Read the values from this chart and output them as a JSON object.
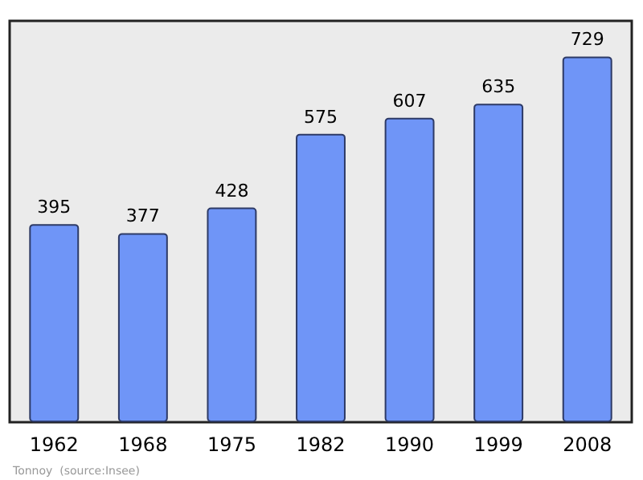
{
  "chart_data": {
    "type": "bar",
    "categories": [
      "1962",
      "1968",
      "1975",
      "1982",
      "1990",
      "1999",
      "2008"
    ],
    "values": [
      395,
      377,
      428,
      575,
      607,
      635,
      729
    ],
    "color": "#6f95f7",
    "data_labels": true,
    "annotations": [
      "Tonnoy  (source:Insee)"
    ]
  }
}
